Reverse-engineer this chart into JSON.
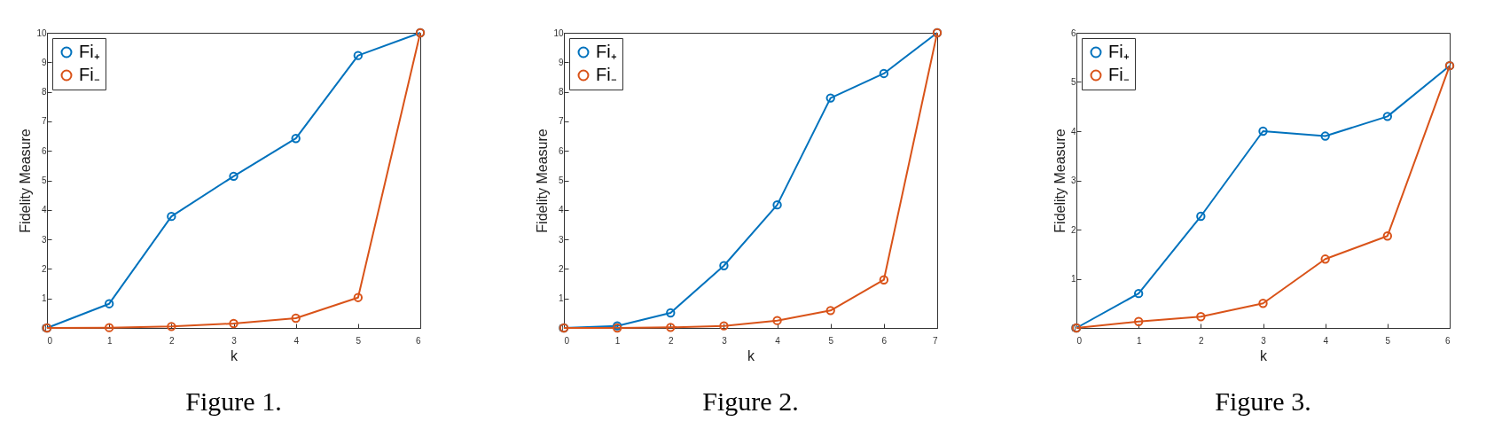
{
  "chart_data": [
    {
      "type": "line",
      "title": "Figure 1.",
      "xlabel": "k",
      "ylabel": "Fidelity Measure",
      "x": [
        0,
        1,
        2,
        3,
        4,
        5,
        6
      ],
      "xlim": [
        0,
        6
      ],
      "xticks": [
        0,
        1,
        2,
        3,
        4,
        5,
        6
      ],
      "ylim": [
        0,
        10
      ],
      "yticks": [
        0,
        1,
        2,
        3,
        4,
        5,
        6,
        7,
        8,
        9,
        10
      ],
      "grid": false,
      "legend": "top left",
      "marker": "circle",
      "line_style": "solid",
      "series": [
        {
          "name": "Fi₊",
          "color": "#0072bd",
          "values": [
            0,
            0.82,
            3.78,
            5.14,
            6.42,
            9.23,
            10
          ]
        },
        {
          "name": "Fi₋",
          "color": "#d95319",
          "values": [
            0,
            0.01,
            0.05,
            0.15,
            0.33,
            1.03,
            10
          ]
        }
      ]
    },
    {
      "type": "line",
      "title": "Figure 2.",
      "xlabel": "k",
      "ylabel": "Fidelity Measure",
      "x": [
        0,
        1,
        2,
        3,
        4,
        5,
        6,
        7
      ],
      "xlim": [
        0,
        7
      ],
      "xticks": [
        0,
        1,
        2,
        3,
        4,
        5,
        6,
        7
      ],
      "ylim": [
        0,
        10
      ],
      "yticks": [
        0,
        1,
        2,
        3,
        4,
        5,
        6,
        7,
        8,
        9,
        10
      ],
      "grid": false,
      "legend": "top left",
      "marker": "circle",
      "line_style": "solid",
      "series": [
        {
          "name": "Fi₊",
          "color": "#0072bd",
          "values": [
            0,
            0.07,
            0.51,
            2.11,
            4.17,
            7.79,
            8.62,
            10
          ]
        },
        {
          "name": "Fi₋",
          "color": "#d95319",
          "values": [
            0,
            0,
            0.02,
            0.07,
            0.25,
            0.59,
            1.63,
            10
          ]
        }
      ]
    },
    {
      "type": "line",
      "title": "Figure 3.",
      "xlabel": "k",
      "ylabel": "Fidelity Measure",
      "x": [
        0,
        1,
        2,
        3,
        4,
        5,
        6
      ],
      "xlim": [
        0,
        6
      ],
      "xticks": [
        0,
        1,
        2,
        3,
        4,
        5,
        6
      ],
      "ylim": [
        0,
        6
      ],
      "yticks": [
        0,
        1,
        2,
        3,
        4,
        5,
        6
      ],
      "grid": false,
      "legend": "top left",
      "marker": "circle",
      "line_style": "solid",
      "series": [
        {
          "name": "Fi₊",
          "color": "#0072bd",
          "values": [
            0,
            0.7,
            2.27,
            4.0,
            3.9,
            4.3,
            5.33
          ]
        },
        {
          "name": "Fi₋",
          "color": "#d95319",
          "values": [
            0,
            0.13,
            0.23,
            0.5,
            1.4,
            1.87,
            5.33
          ]
        }
      ]
    }
  ]
}
